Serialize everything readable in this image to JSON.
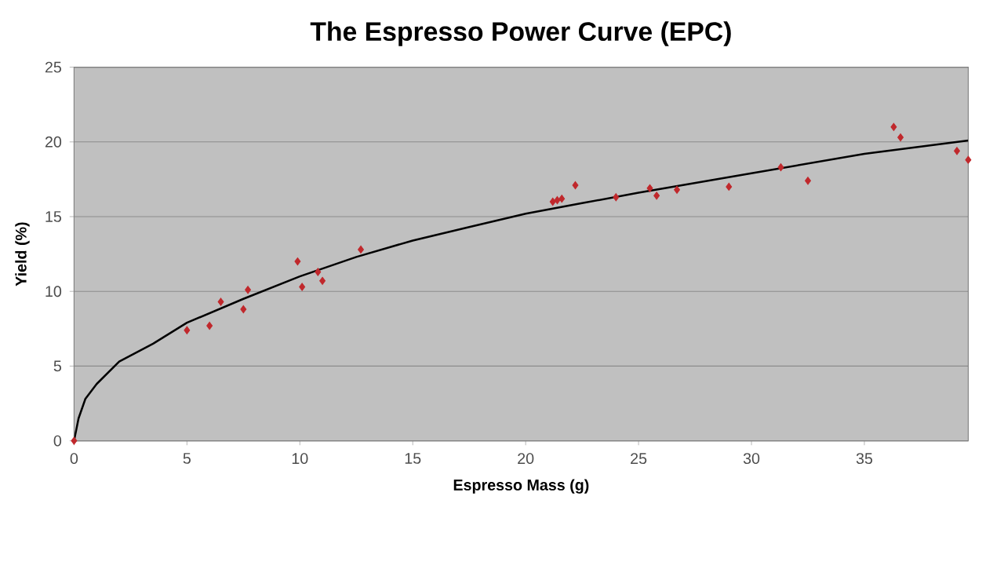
{
  "chart_data": {
    "type": "scatter",
    "title": "The Espresso Power Curve (EPC)",
    "xlabel": "Espresso Mass (g)",
    "ylabel": "Yield (%)",
    "xlim": [
      0,
      39.6
    ],
    "ylim": [
      0,
      25
    ],
    "xticks": [
      0,
      5,
      10,
      15,
      20,
      25,
      30,
      35
    ],
    "yticks": [
      0,
      5,
      10,
      15,
      20,
      25
    ],
    "grid": "y",
    "series": [
      {
        "type": "scatter",
        "marker": "diamond",
        "color": "#c0282c",
        "x": [
          0,
          5.0,
          6.0,
          6.5,
          7.5,
          7.7,
          9.9,
          10.1,
          10.8,
          11.0,
          12.7,
          21.2,
          21.4,
          21.6,
          22.2,
          24.0,
          25.5,
          25.8,
          26.7,
          29.0,
          31.3,
          32.5,
          36.3,
          36.6,
          39.1,
          39.6
        ],
        "values": [
          0,
          7.4,
          7.7,
          9.3,
          8.8,
          10.1,
          12.0,
          10.3,
          11.3,
          10.7,
          12.8,
          16.0,
          16.1,
          16.2,
          17.1,
          16.3,
          16.9,
          16.4,
          16.8,
          17.0,
          18.3,
          17.4,
          21.0,
          20.3,
          19.4,
          18.8
        ]
      },
      {
        "type": "line",
        "marker": "none",
        "color": "#000000",
        "x": [
          0,
          0.2,
          0.5,
          1,
          2,
          3.5,
          5,
          7.5,
          10,
          12.5,
          15,
          17.5,
          20,
          22.5,
          25,
          30,
          35,
          39.6
        ],
        "values": [
          0,
          1.5,
          2.8,
          3.8,
          5.3,
          6.5,
          7.9,
          9.5,
          11.0,
          12.3,
          13.4,
          14.3,
          15.2,
          15.9,
          16.6,
          17.9,
          19.2,
          20.1
        ]
      }
    ]
  }
}
